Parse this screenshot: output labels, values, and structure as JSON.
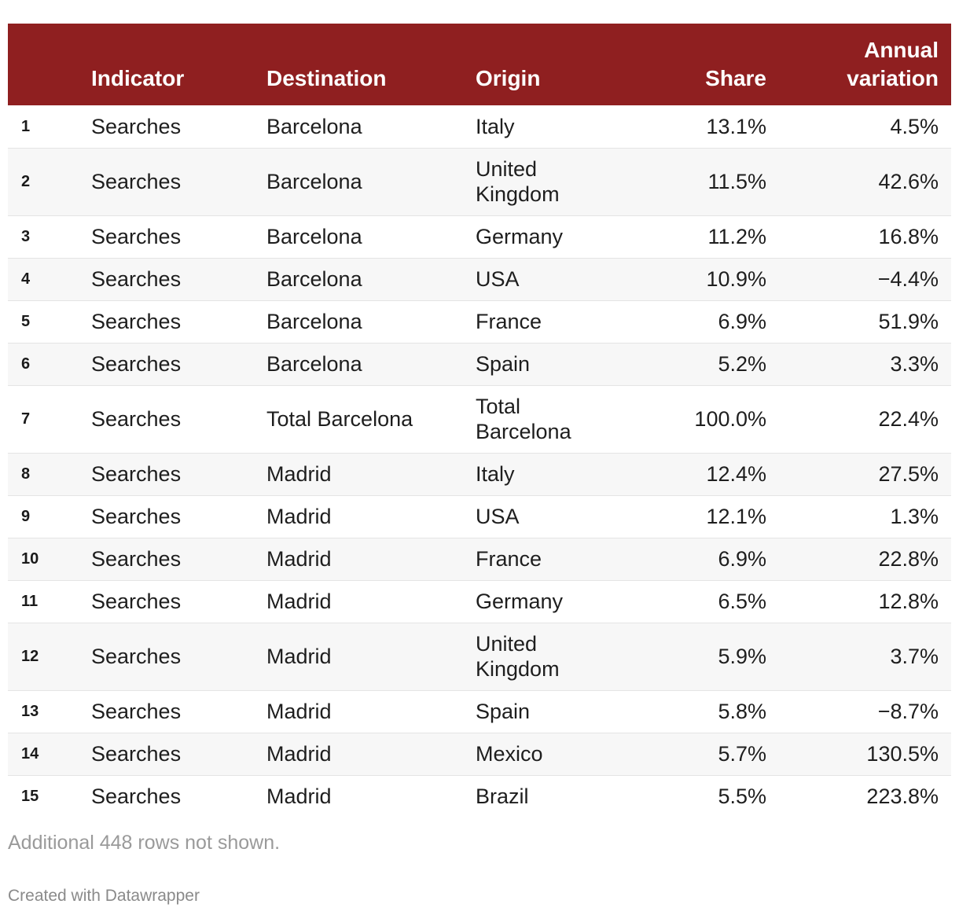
{
  "chart_data": {
    "type": "table",
    "columns": {
      "rank": "",
      "indicator": "Indicator",
      "destination": "Destination",
      "origin": "Origin",
      "share": "Share",
      "variation": "Annual variation"
    },
    "rows": [
      {
        "rank": "1",
        "indicator": "Searches",
        "destination": "Barcelona",
        "origin": "Italy",
        "share": "13.1%",
        "variation": "4.5%"
      },
      {
        "rank": "2",
        "indicator": "Searches",
        "destination": "Barcelona",
        "origin": "United Kingdom",
        "share": "11.5%",
        "variation": "42.6%"
      },
      {
        "rank": "3",
        "indicator": "Searches",
        "destination": "Barcelona",
        "origin": "Germany",
        "share": "11.2%",
        "variation": "16.8%"
      },
      {
        "rank": "4",
        "indicator": "Searches",
        "destination": "Barcelona",
        "origin": "USA",
        "share": "10.9%",
        "variation": "−4.4%"
      },
      {
        "rank": "5",
        "indicator": "Searches",
        "destination": "Barcelona",
        "origin": "France",
        "share": "6.9%",
        "variation": "51.9%"
      },
      {
        "rank": "6",
        "indicator": "Searches",
        "destination": "Barcelona",
        "origin": "Spain",
        "share": "5.2%",
        "variation": "3.3%"
      },
      {
        "rank": "7",
        "indicator": "Searches",
        "destination": "Total Barcelona",
        "origin": "Total Barcelona",
        "share": "100.0%",
        "variation": "22.4%"
      },
      {
        "rank": "8",
        "indicator": "Searches",
        "destination": "Madrid",
        "origin": "Italy",
        "share": "12.4%",
        "variation": "27.5%"
      },
      {
        "rank": "9",
        "indicator": "Searches",
        "destination": "Madrid",
        "origin": "USA",
        "share": "12.1%",
        "variation": "1.3%"
      },
      {
        "rank": "10",
        "indicator": "Searches",
        "destination": "Madrid",
        "origin": "France",
        "share": "6.9%",
        "variation": "22.8%"
      },
      {
        "rank": "11",
        "indicator": "Searches",
        "destination": "Madrid",
        "origin": "Germany",
        "share": "6.5%",
        "variation": "12.8%"
      },
      {
        "rank": "12",
        "indicator": "Searches",
        "destination": "Madrid",
        "origin": "United Kingdom",
        "share": "5.9%",
        "variation": "3.7%"
      },
      {
        "rank": "13",
        "indicator": "Searches",
        "destination": "Madrid",
        "origin": "Spain",
        "share": "5.8%",
        "variation": "−8.7%"
      },
      {
        "rank": "14",
        "indicator": "Searches",
        "destination": "Madrid",
        "origin": "Mexico",
        "share": "5.7%",
        "variation": "130.5%"
      },
      {
        "rank": "15",
        "indicator": "Searches",
        "destination": "Madrid",
        "origin": "Brazil",
        "share": "5.5%",
        "variation": "223.8%"
      }
    ],
    "footer_note": "Additional 448 rows not shown.",
    "credit": "Created with Datawrapper",
    "header_color": "#8f1f20"
  }
}
